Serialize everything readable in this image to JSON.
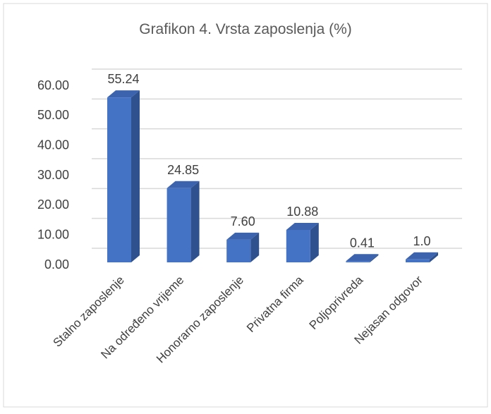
{
  "chart_data": {
    "type": "bar3d",
    "title": "Grafikon 4. Vrsta zaposlenja (%)",
    "categories": [
      "Stalno zaposlenje",
      "Na određeno vrijeme",
      "Honorarno zaposlenje",
      "Privatna firma",
      "Poljoprivreda",
      "Nejasan odgovor"
    ],
    "values": [
      55.24,
      24.85,
      7.6,
      10.88,
      0.41,
      1.0
    ],
    "value_labels": [
      "55.24",
      "24.85",
      "7.60",
      "10.88",
      "0.41",
      "1.0"
    ],
    "color": "#4472c4",
    "ylim": [
      0,
      60
    ],
    "yticks": [
      {
        "value": 0,
        "label": "0.00"
      },
      {
        "value": 10,
        "label": "10.00"
      },
      {
        "value": 20,
        "label": "20.00"
      },
      {
        "value": 30,
        "label": "30.00"
      },
      {
        "value": 40,
        "label": "40.00"
      },
      {
        "value": 50,
        "label": "50.00"
      },
      {
        "value": 60,
        "label": "60.00"
      }
    ],
    "grid": true
  }
}
